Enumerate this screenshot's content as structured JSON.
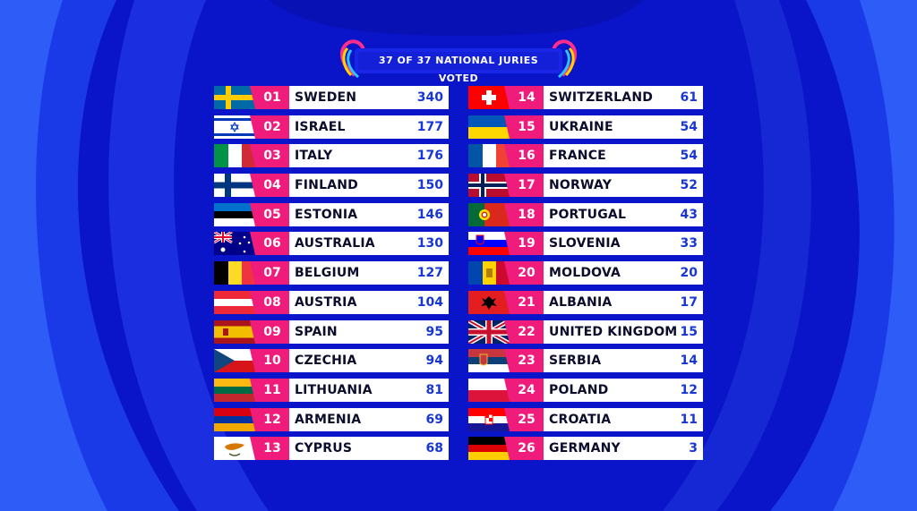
{
  "header": {
    "title": "37 OF 37 NATIONAL JURIES VOTED"
  },
  "colors": {
    "accent": "#ef1c7c",
    "points": "#1836d4",
    "background": "#0a14c8"
  },
  "left": [
    {
      "rank": "01",
      "country": "SWEDEN",
      "points": "340",
      "flag": "sweden-flag-icon"
    },
    {
      "rank": "02",
      "country": "ISRAEL",
      "points": "177",
      "flag": "israel-flag-icon"
    },
    {
      "rank": "03",
      "country": "ITALY",
      "points": "176",
      "flag": "italy-flag-icon"
    },
    {
      "rank": "04",
      "country": "FINLAND",
      "points": "150",
      "flag": "finland-flag-icon"
    },
    {
      "rank": "05",
      "country": "ESTONIA",
      "points": "146",
      "flag": "estonia-flag-icon"
    },
    {
      "rank": "06",
      "country": "AUSTRALIA",
      "points": "130",
      "flag": "australia-flag-icon"
    },
    {
      "rank": "07",
      "country": "BELGIUM",
      "points": "127",
      "flag": "belgium-flag-icon"
    },
    {
      "rank": "08",
      "country": "AUSTRIA",
      "points": "104",
      "flag": "austria-flag-icon"
    },
    {
      "rank": "09",
      "country": "SPAIN",
      "points": "95",
      "flag": "spain-flag-icon"
    },
    {
      "rank": "10",
      "country": "CZECHIA",
      "points": "94",
      "flag": "czechia-flag-icon"
    },
    {
      "rank": "11",
      "country": "LITHUANIA",
      "points": "81",
      "flag": "lithuania-flag-icon"
    },
    {
      "rank": "12",
      "country": "ARMENIA",
      "points": "69",
      "flag": "armenia-flag-icon"
    },
    {
      "rank": "13",
      "country": "CYPRUS",
      "points": "68",
      "flag": "cyprus-flag-icon"
    }
  ],
  "right": [
    {
      "rank": "14",
      "country": "SWITZERLAND",
      "points": "61",
      "flag": "switzerland-flag-icon"
    },
    {
      "rank": "15",
      "country": "UKRAINE",
      "points": "54",
      "flag": "ukraine-flag-icon"
    },
    {
      "rank": "16",
      "country": "FRANCE",
      "points": "54",
      "flag": "france-flag-icon"
    },
    {
      "rank": "17",
      "country": "NORWAY",
      "points": "52",
      "flag": "norway-flag-icon"
    },
    {
      "rank": "18",
      "country": "PORTUGAL",
      "points": "43",
      "flag": "portugal-flag-icon"
    },
    {
      "rank": "19",
      "country": "SLOVENIA",
      "points": "33",
      "flag": "slovenia-flag-icon"
    },
    {
      "rank": "20",
      "country": "MOLDOVA",
      "points": "20",
      "flag": "moldova-flag-icon"
    },
    {
      "rank": "21",
      "country": "ALBANIA",
      "points": "17",
      "flag": "albania-flag-icon"
    },
    {
      "rank": "22",
      "country": "UNITED KINGDOM",
      "points": "15",
      "flag": "united-kingdom-flag-icon"
    },
    {
      "rank": "23",
      "country": "SERBIA",
      "points": "14",
      "flag": "serbia-flag-icon"
    },
    {
      "rank": "24",
      "country": "POLAND",
      "points": "12",
      "flag": "poland-flag-icon"
    },
    {
      "rank": "25",
      "country": "CROATIA",
      "points": "11",
      "flag": "croatia-flag-icon"
    },
    {
      "rank": "26",
      "country": "GERMANY",
      "points": "3",
      "flag": "germany-flag-icon"
    }
  ]
}
